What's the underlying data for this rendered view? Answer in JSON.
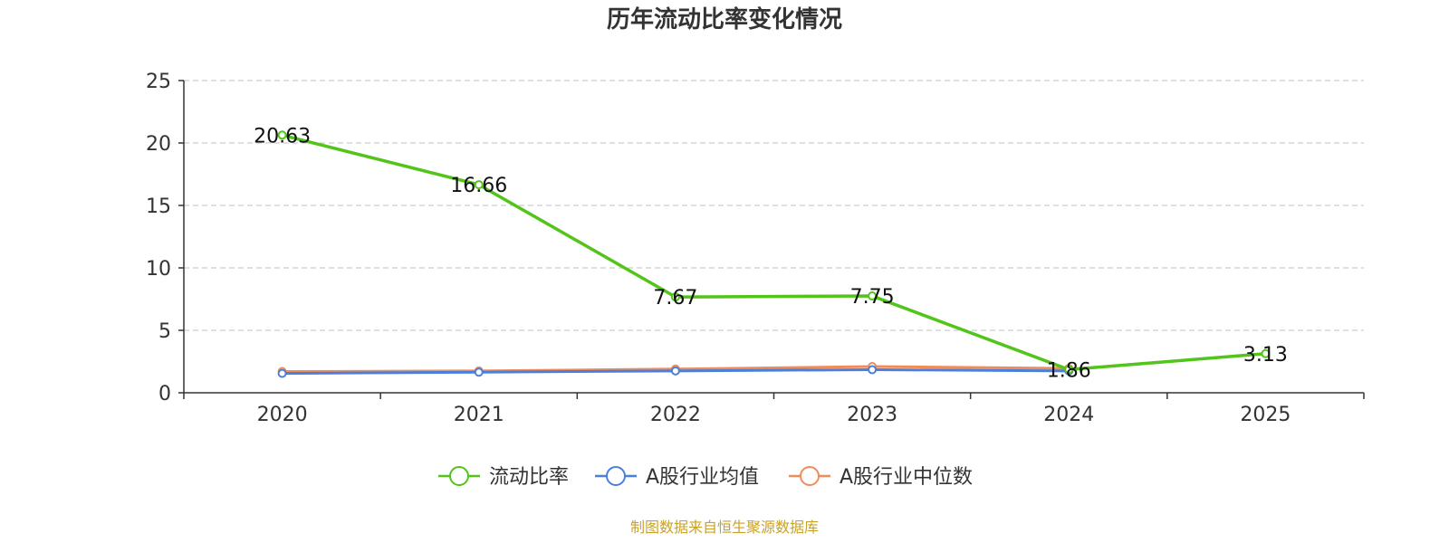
{
  "chart_data": {
    "type": "line",
    "title": "历年流动比率变化情况",
    "categories": [
      "2020",
      "2021",
      "2022",
      "2023",
      "2024",
      "2025"
    ],
    "ylim": [
      0,
      25
    ],
    "yticks": [
      0,
      5,
      10,
      15,
      20,
      25
    ],
    "grid": true,
    "legend_position": "bottom-center",
    "series": [
      {
        "name": "流动比率",
        "color": "#52c41a",
        "values": [
          20.63,
          16.66,
          7.67,
          7.75,
          1.86,
          3.13
        ],
        "labels": [
          "20.63",
          "16.66",
          "7.67",
          "7.75",
          "1.86",
          "3.13"
        ]
      },
      {
        "name": "A股行业均值",
        "color": "#4a7fdb",
        "values": [
          1.55,
          1.65,
          1.75,
          1.85,
          1.75,
          null
        ]
      },
      {
        "name": "A股行业中位数",
        "color": "#f08c5a",
        "values": [
          1.7,
          1.75,
          1.9,
          2.1,
          1.95,
          null
        ]
      }
    ],
    "source": "制图数据来自恒生聚源数据库"
  }
}
